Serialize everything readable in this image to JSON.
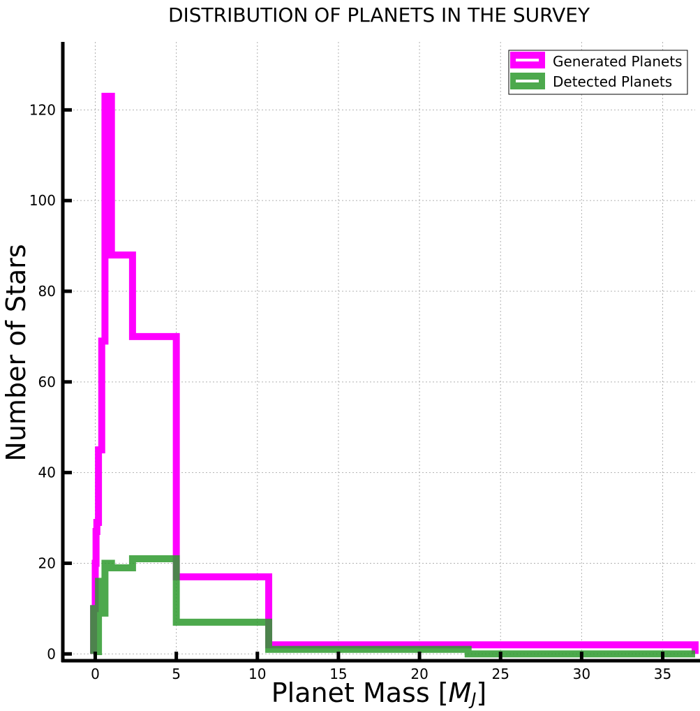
{
  "chart_data": {
    "type": "histogram-step",
    "title": "DISTRIBUTION OF PLANETS IN THE SURVEY",
    "xlabel_prefix": "Planet Mass [",
    "xlabel_var": "M",
    "xlabel_sub": "J",
    "xlabel_suffix": "]",
    "ylabel": "Number of Stars",
    "xlim": [
      -2,
      37
    ],
    "ylim": [
      -1.5,
      135
    ],
    "xticks": [
      0,
      5,
      10,
      15,
      20,
      25,
      30,
      35
    ],
    "yticks": [
      0,
      20,
      40,
      60,
      80,
      100,
      120
    ],
    "grid": true,
    "legend_position": "top-right",
    "series": [
      {
        "name": "Generated Planets",
        "color": "#ff00ff",
        "bin_edges": [
          -0.1,
          0.0,
          0.05,
          0.1,
          0.2,
          0.4,
          0.6,
          1.0,
          2.3,
          5.0,
          10.7,
          23.0,
          37.0
        ],
        "counts": [
          10,
          20,
          27,
          29,
          45,
          69,
          123,
          88,
          70,
          17,
          2,
          2
        ]
      },
      {
        "name": "Detected Planets",
        "color": "#2e9a2e",
        "bin_edges": [
          -0.1,
          0.1,
          0.2,
          0.4,
          0.6,
          1.0,
          2.3,
          5.0,
          10.7,
          23.0,
          37.0
        ],
        "counts": [
          10,
          0.5,
          16,
          9,
          20,
          19,
          21,
          7,
          1,
          0
        ],
        "opacity": 0.85
      }
    ]
  }
}
